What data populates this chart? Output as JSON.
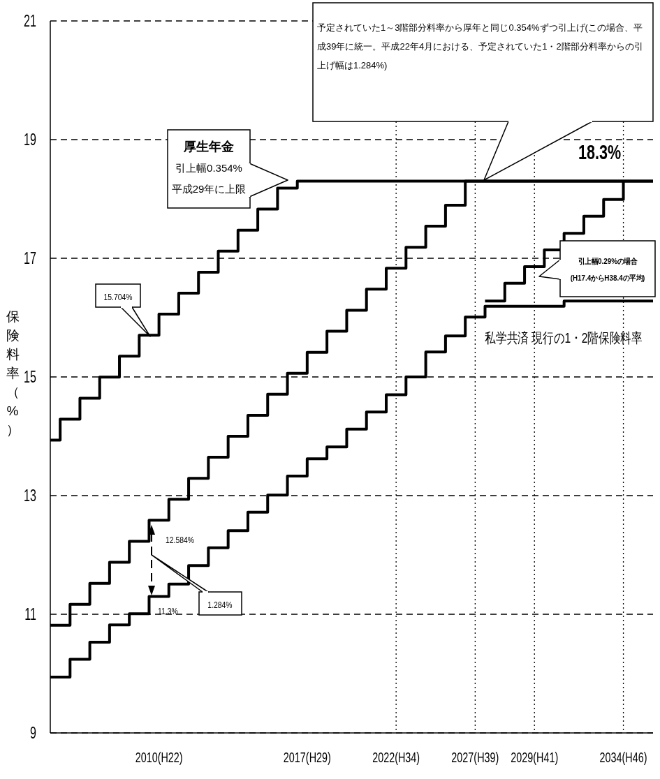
{
  "chart_data": {
    "type": "step",
    "ylabel": "保険料率（%）",
    "categories": [
      null,
      null,
      null,
      null,
      null,
      null,
      null,
      null,
      null,
      null,
      null,
      "2010(H22)",
      null,
      null,
      null,
      null,
      null,
      null,
      null,
      null,
      null,
      null,
      null,
      null,
      null,
      null,
      "2017(H29)",
      null,
      null,
      null,
      null,
      null,
      null,
      null,
      null,
      "2022(H34)",
      null,
      null,
      null,
      null,
      null,
      null,
      null,
      "2027(H39)",
      null,
      null,
      null,
      null,
      null,
      "2029(H41)",
      null,
      null,
      null,
      null,
      null,
      null,
      null,
      null,
      "2034(H46)",
      null,
      null,
      null
    ],
    "ylim": [
      9,
      21
    ],
    "yticks": [
      9,
      11,
      13,
      15,
      17,
      19,
      21
    ],
    "grid": "y",
    "line_style": "solid",
    "ref_lines": [
      {
        "axis": "x",
        "value": "2022(H34)",
        "color": "#000000",
        "line_style": "dotted"
      },
      {
        "axis": "x",
        "value": "2027(H39)",
        "color": "#000000",
        "line_style": "dotted"
      },
      {
        "axis": "x",
        "value": "2029(H41)",
        "color": "#000000",
        "line_style": "dotted"
      },
      {
        "axis": "x",
        "value": "2034(H46)",
        "color": "#000000",
        "line_style": "dotted"
      }
    ],
    "series": [
      {
        "color": "#000000",
        "values": [
          13.934,
          14.288,
          14.288,
          14.642,
          14.642,
          14.996,
          14.996,
          15.35,
          15.35,
          15.704,
          15.704,
          16.058,
          16.058,
          16.412,
          16.412,
          16.766,
          16.766,
          17.12,
          17.12,
          17.474,
          17.474,
          17.828,
          17.828,
          18.182,
          18.182,
          18.3,
          18.3,
          18.3,
          18.3,
          18.3,
          18.3,
          18.3,
          18.3,
          18.3,
          18.3,
          18.3,
          18.3,
          18.3,
          18.3,
          18.3,
          18.3,
          18.3,
          18.3,
          18.3,
          18.3,
          18.3,
          18.3,
          18.3,
          18.3,
          18.3,
          18.3,
          18.3,
          18.3,
          18.3,
          18.3,
          18.3,
          18.3,
          18.3,
          18.3,
          18.3,
          18.3,
          18.3
        ]
      },
      {
        "color": "#000000",
        "values": [
          10.814,
          10.814,
          11.168,
          11.168,
          11.522,
          11.522,
          11.876,
          11.876,
          12.23,
          12.23,
          12.584,
          12.584,
          12.938,
          12.938,
          13.292,
          13.292,
          13.646,
          13.646,
          14.0,
          14.0,
          14.354,
          14.354,
          14.708,
          14.708,
          15.062,
          15.062,
          15.416,
          15.416,
          15.77,
          15.77,
          16.124,
          16.124,
          16.478,
          16.478,
          16.832,
          16.832,
          17.186,
          17.186,
          17.54,
          17.54,
          17.894,
          17.894,
          18.3,
          18.3,
          18.3,
          18.3,
          18.3,
          18.3,
          18.3,
          18.3,
          18.3,
          18.3,
          18.3,
          18.3,
          18.3,
          18.3,
          18.3,
          18.3,
          18.3,
          18.3,
          18.3,
          18.3
        ]
      },
      {
        "name": "私学共済  現行の1・2階保険料率",
        "color": "#000000",
        "values": [
          9.94,
          9.94,
          10.24,
          10.24,
          10.53,
          10.53,
          10.82,
          10.82,
          11.01,
          11.01,
          11.3,
          11.3,
          11.51,
          11.51,
          11.82,
          11.82,
          12.12,
          12.12,
          12.41,
          12.41,
          12.72,
          12.72,
          13.01,
          13.01,
          13.33,
          13.33,
          13.62,
          13.62,
          13.82,
          13.82,
          14.12,
          14.12,
          14.41,
          14.41,
          14.7,
          14.7,
          15.0,
          15.0,
          15.42,
          15.42,
          15.69,
          15.69,
          16.01,
          16.01,
          16.19,
          16.19,
          16.19,
          16.19,
          16.19,
          16.19,
          16.19,
          16.19,
          16.28,
          16.28,
          16.28,
          16.28,
          16.28,
          16.28,
          16.28,
          16.28,
          16.28,
          16.28
        ]
      },
      {
        "color": "#000000",
        "values": [
          null,
          null,
          null,
          null,
          null,
          null,
          null,
          null,
          null,
          null,
          null,
          null,
          null,
          null,
          null,
          null,
          null,
          null,
          null,
          null,
          null,
          null,
          null,
          null,
          null,
          null,
          null,
          null,
          null,
          null,
          null,
          null,
          null,
          null,
          null,
          null,
          null,
          null,
          null,
          null,
          null,
          null,
          null,
          null,
          16.28,
          16.28,
          16.58,
          16.58,
          16.86,
          16.86,
          17.14,
          17.14,
          17.42,
          17.42,
          17.71,
          17.71,
          17.99,
          17.99,
          18.3,
          null,
          null,
          null
        ]
      }
    ],
    "annotations": [
      "予定されていた1～3階部分料率から厚年と同じ0.354%ずつ引上げ(この場合、平成39年に統一。平成22年4月における、予定されていた1・2階部分料率からの引上げ幅は1.284%)",
      "18.3%",
      "厚生年金",
      "引上幅0.354%",
      "平成29年に上限",
      "15.704%",
      "12.584%",
      "11.3%",
      "1.284%",
      "引上幅0.29%の場合",
      "(H17.4からH38.4の平均)"
    ]
  }
}
